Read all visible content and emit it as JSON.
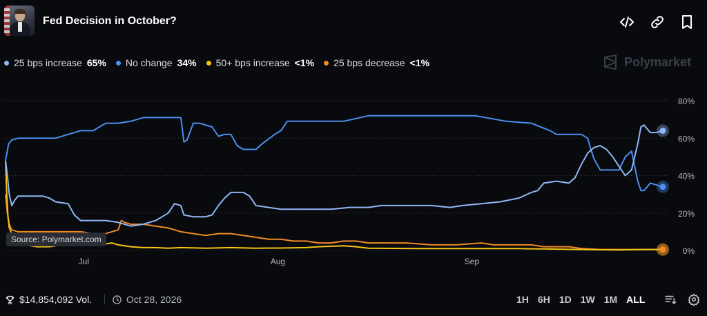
{
  "header": {
    "title": "Fed Decision in October?"
  },
  "legend": [
    {
      "name": "25 bps increase",
      "value": "65%",
      "color": "#8fb8f5"
    },
    {
      "name": "No change",
      "value": "34%",
      "color": "#4b8ff0"
    },
    {
      "name": "50+ bps increase",
      "value": "<1%",
      "color": "#f5c518"
    },
    {
      "name": "25 bps decrease",
      "value": "<1%",
      "color": "#f08a24"
    }
  ],
  "watermark": "Polymarket",
  "source": "Source: Polymarket.com",
  "footer": {
    "volume": "$14,854,092 Vol.",
    "date": "Oct 28, 2026",
    "ranges": [
      "1H",
      "6H",
      "1D",
      "1W",
      "1M",
      "ALL"
    ],
    "active_range": "ALL"
  },
  "chart_data": {
    "type": "line",
    "x_ticks": [
      {
        "label": "Jul",
        "x": 12.5
      },
      {
        "label": "Aug",
        "x": 43.5
      },
      {
        "label": "Sep",
        "x": 74.5
      }
    ],
    "y_ticks": [
      "0%",
      "20%",
      "40%",
      "60%",
      "80%"
    ],
    "ylim": [
      0,
      80
    ],
    "xlim": [
      0,
      100
    ],
    "grid": true,
    "legend_position": "top-left",
    "series": [
      {
        "name": "25 bps increase",
        "color": "#8fb8f5",
        "points": [
          [
            0,
            48
          ],
          [
            0.3,
            40
          ],
          [
            0.6,
            30
          ],
          [
            1,
            24
          ],
          [
            1.5,
            27
          ],
          [
            2,
            29
          ],
          [
            4,
            29
          ],
          [
            6,
            29
          ],
          [
            7,
            28
          ],
          [
            8,
            26
          ],
          [
            10,
            25
          ],
          [
            11,
            19
          ],
          [
            12,
            16
          ],
          [
            14,
            16
          ],
          [
            16,
            16
          ],
          [
            18,
            15
          ],
          [
            20,
            13
          ],
          [
            22,
            14
          ],
          [
            24,
            16
          ],
          [
            25,
            18
          ],
          [
            26,
            20
          ],
          [
            27,
            25
          ],
          [
            28,
            24
          ],
          [
            28.5,
            19
          ],
          [
            30,
            18
          ],
          [
            32,
            18
          ],
          [
            33,
            19
          ],
          [
            34,
            24
          ],
          [
            35,
            28
          ],
          [
            36,
            31
          ],
          [
            38,
            31
          ],
          [
            39,
            29
          ],
          [
            40,
            24
          ],
          [
            42,
            23
          ],
          [
            44,
            22
          ],
          [
            48,
            22
          ],
          [
            52,
            22
          ],
          [
            55,
            23
          ],
          [
            58,
            23
          ],
          [
            60,
            24
          ],
          [
            64,
            24
          ],
          [
            68,
            24
          ],
          [
            71,
            23
          ],
          [
            73,
            24
          ],
          [
            76,
            25
          ],
          [
            79,
            26
          ],
          [
            82,
            28
          ],
          [
            84,
            31
          ],
          [
            85,
            32
          ],
          [
            86,
            36
          ],
          [
            88,
            37
          ],
          [
            90,
            36
          ],
          [
            91,
            39
          ],
          [
            92,
            46
          ],
          [
            93,
            52
          ],
          [
            94,
            55
          ],
          [
            95,
            56
          ],
          [
            96,
            54
          ],
          [
            97,
            50
          ],
          [
            98,
            45
          ],
          [
            99,
            40
          ],
          [
            100,
            43
          ],
          [
            101,
            57
          ],
          [
            101.5,
            66
          ],
          [
            102,
            67
          ],
          [
            103,
            63
          ],
          [
            104,
            63
          ],
          [
            105,
            64
          ]
        ]
      },
      {
        "name": "No change",
        "color": "#4b8ff0",
        "points": [
          [
            0,
            48
          ],
          [
            0.5,
            57
          ],
          [
            1,
            59
          ],
          [
            2,
            60
          ],
          [
            4,
            60
          ],
          [
            6,
            60
          ],
          [
            8,
            60
          ],
          [
            10,
            62
          ],
          [
            12,
            64
          ],
          [
            14,
            64
          ],
          [
            16,
            68
          ],
          [
            18,
            68
          ],
          [
            20,
            69
          ],
          [
            22,
            71
          ],
          [
            24,
            71
          ],
          [
            26,
            71
          ],
          [
            28,
            71
          ],
          [
            28.2,
            66
          ],
          [
            28.5,
            58
          ],
          [
            29,
            59
          ],
          [
            30,
            68
          ],
          [
            31,
            68
          ],
          [
            33,
            66
          ],
          [
            34,
            61
          ],
          [
            35,
            62
          ],
          [
            36,
            62
          ],
          [
            37,
            56
          ],
          [
            38,
            54
          ],
          [
            40,
            54
          ],
          [
            41,
            57
          ],
          [
            43,
            62
          ],
          [
            44,
            64
          ],
          [
            45,
            69
          ],
          [
            47,
            69
          ],
          [
            50,
            69
          ],
          [
            54,
            69
          ],
          [
            58,
            72
          ],
          [
            62,
            72
          ],
          [
            66,
            72
          ],
          [
            70,
            72
          ],
          [
            75,
            72
          ],
          [
            80,
            69
          ],
          [
            84,
            68
          ],
          [
            87,
            64
          ],
          [
            88,
            62
          ],
          [
            92,
            62
          ],
          [
            93,
            60
          ],
          [
            93.5,
            54
          ],
          [
            94,
            49
          ],
          [
            95,
            43
          ],
          [
            98,
            43
          ],
          [
            99,
            50
          ],
          [
            100,
            53
          ],
          [
            100.5,
            45
          ],
          [
            101,
            37
          ],
          [
            101.5,
            32
          ],
          [
            102,
            32
          ],
          [
            103,
            36
          ],
          [
            104,
            35
          ],
          [
            105,
            34
          ]
        ]
      },
      {
        "name": "50+ bps increase",
        "color": "#f5c518",
        "points": [
          [
            0,
            48
          ],
          [
            0.2,
            30
          ],
          [
            0.4,
            18
          ],
          [
            0.6,
            12
          ],
          [
            1,
            9
          ],
          [
            1.5,
            7
          ],
          [
            2,
            5
          ],
          [
            3,
            3
          ],
          [
            5,
            2
          ],
          [
            7,
            2
          ],
          [
            9,
            3
          ],
          [
            11,
            3
          ],
          [
            13,
            3
          ],
          [
            15,
            3
          ],
          [
            17,
            4
          ],
          [
            18,
            3
          ],
          [
            20,
            2
          ],
          [
            22,
            1.5
          ],
          [
            24,
            1.5
          ],
          [
            26,
            1.2
          ],
          [
            28,
            1.5
          ],
          [
            32,
            1.2
          ],
          [
            36,
            1.5
          ],
          [
            40,
            1.2
          ],
          [
            44,
            1.3
          ],
          [
            48,
            1.5
          ],
          [
            50,
            2
          ],
          [
            54,
            2.5
          ],
          [
            56,
            2
          ],
          [
            58,
            1.2
          ],
          [
            62,
            1.1
          ],
          [
            66,
            1
          ],
          [
            70,
            1
          ],
          [
            74,
            1
          ],
          [
            78,
            1
          ],
          [
            82,
            1
          ],
          [
            86,
            0.8
          ],
          [
            90,
            0.6
          ],
          [
            94,
            0.4
          ],
          [
            98,
            0.3
          ],
          [
            102,
            0.5
          ],
          [
            105,
            0.5
          ]
        ]
      },
      {
        "name": "25 bps decrease",
        "color": "#f08a24",
        "points": [
          [
            0,
            30
          ],
          [
            0.3,
            20
          ],
          [
            0.6,
            14
          ],
          [
            1,
            11
          ],
          [
            2,
            10
          ],
          [
            4,
            10
          ],
          [
            6,
            10
          ],
          [
            8,
            10
          ],
          [
            10,
            10
          ],
          [
            12,
            10
          ],
          [
            14,
            9
          ],
          [
            16,
            9
          ],
          [
            18,
            11
          ],
          [
            18.5,
            16
          ],
          [
            19,
            15
          ],
          [
            20,
            14
          ],
          [
            22,
            14
          ],
          [
            24,
            13
          ],
          [
            26,
            12
          ],
          [
            28,
            10
          ],
          [
            30,
            9
          ],
          [
            32,
            8
          ],
          [
            34,
            9
          ],
          [
            36,
            9
          ],
          [
            38,
            8
          ],
          [
            40,
            7
          ],
          [
            42,
            6
          ],
          [
            44,
            6
          ],
          [
            46,
            5
          ],
          [
            48,
            5
          ],
          [
            50,
            4
          ],
          [
            52,
            4
          ],
          [
            54,
            5
          ],
          [
            56,
            5
          ],
          [
            58,
            4
          ],
          [
            60,
            4
          ],
          [
            64,
            4
          ],
          [
            68,
            3
          ],
          [
            72,
            3
          ],
          [
            76,
            4
          ],
          [
            78,
            3
          ],
          [
            80,
            3
          ],
          [
            82,
            3
          ],
          [
            84,
            3
          ],
          [
            86,
            2
          ],
          [
            88,
            2
          ],
          [
            90,
            2
          ],
          [
            92,
            1
          ],
          [
            95,
            0.5
          ],
          [
            100,
            0.5
          ],
          [
            105,
            0.5
          ]
        ]
      }
    ]
  }
}
